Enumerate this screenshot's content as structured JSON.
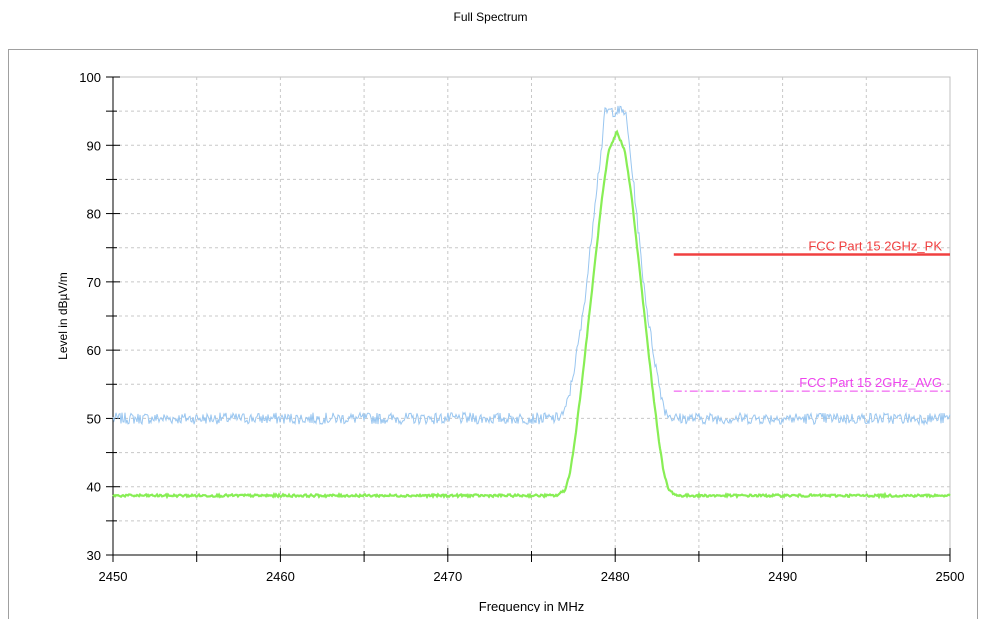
{
  "chart_data": {
    "type": "line",
    "title": "Full Spectrum",
    "xlabel": "Frequency in MHz",
    "ylabel": "Level in dBµV/m",
    "xlim": [
      2450,
      2500
    ],
    "ylim": [
      30,
      100
    ],
    "x_ticks": [
      "2450",
      "2460",
      "2470",
      "2480",
      "2490",
      "2500"
    ],
    "y_ticks": [
      "30",
      "40",
      "50",
      "60",
      "70",
      "80",
      "90",
      "100"
    ],
    "grid": true,
    "colors": {
      "peak_trace": "#99c6f0",
      "average_trace": "#88ee55",
      "pk_limit": "#f04040",
      "avg_limit": "#ee44ee"
    },
    "series": [
      {
        "role": "peak_trace",
        "x": [
          2450,
          2476.5,
          2477.0,
          2477.3,
          2477.6,
          2478.0,
          2478.4,
          2478.8,
          2479.2,
          2479.4,
          2480.0,
          2480.6,
          2480.8,
          2481.2,
          2481.6,
          2482.0,
          2482.4,
          2482.7,
          2483.0,
          2483.5,
          2500
        ],
        "y": [
          50,
          50,
          51,
          54,
          58,
          64,
          72,
          82,
          90,
          95,
          95,
          95,
          91,
          82,
          72,
          64,
          58,
          54,
          51,
          50,
          50
        ]
      },
      {
        "role": "average_trace",
        "x": [
          2450,
          2476.5,
          2477.0,
          2477.3,
          2477.6,
          2478.0,
          2478.4,
          2478.8,
          2479.2,
          2479.6,
          2480.1,
          2480.6,
          2481.0,
          2481.4,
          2481.8,
          2482.2,
          2482.6,
          2482.9,
          2483.2,
          2483.7,
          2500
        ],
        "y": [
          38.7,
          38.7,
          39.5,
          42,
          47,
          55,
          64,
          73,
          82,
          89,
          92,
          89,
          82,
          73,
          64,
          55,
          47,
          42,
          39.5,
          38.7,
          38.7
        ]
      },
      {
        "name": "FCC Part 15 2GHz_PK",
        "role": "pk_limit",
        "x": [
          2483.5,
          2500
        ],
        "y": [
          74,
          74
        ]
      },
      {
        "name": "FCC Part 15 2GHz_AVG",
        "role": "avg_limit",
        "x": [
          2483.5,
          2500
        ],
        "y": [
          54,
          54
        ]
      }
    ]
  }
}
